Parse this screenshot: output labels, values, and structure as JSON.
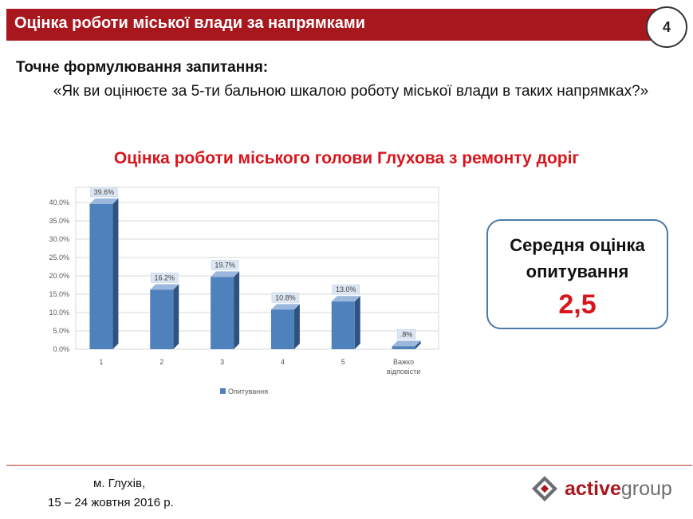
{
  "header": {
    "title": "Оцінка роботи міської влади за напрямками",
    "page_number": "4"
  },
  "question": {
    "label": "Точне формулювання запитання:",
    "text": "«Як ви оцінюєте за 5-ти бальною шкалою роботу міської влади в таких напрямках?»"
  },
  "average": {
    "label": "Середня оцінка опитування",
    "value": "2,5"
  },
  "footer": {
    "city": "м. Глухів,",
    "date": "15 – 24 жовтня  2016 р."
  },
  "logo": {
    "accent": "active",
    "rest": "group"
  },
  "colors": {
    "header_bg": "#a8171e",
    "title_red": "#d8141c",
    "bar": "#4f81bd",
    "bar_side": "#2f5380",
    "box_border": "#4b7aa8"
  },
  "chart_data": {
    "type": "bar",
    "title": "Оцінка роботи міського голови Глухова з ремонту доріг",
    "categories": [
      "1",
      "2",
      "3",
      "4",
      "5",
      "Важко відповісти"
    ],
    "series": [
      {
        "name": "Опитування",
        "values": [
          39.6,
          16.2,
          19.7,
          10.8,
          13.0,
          0.8
        ],
        "labels": [
          "39.6%",
          "16.2%",
          "19.7%",
          "10.8%",
          "13.0%",
          ".8%"
        ]
      }
    ],
    "ylim": [
      0,
      40
    ],
    "yticks": [
      "0.0%",
      "5.0%",
      "10.0%",
      "15.0%",
      "20.0%",
      "25.0%",
      "30.0%",
      "35.0%",
      "40.0%"
    ],
    "grid": true,
    "legend_position": "bottom"
  }
}
